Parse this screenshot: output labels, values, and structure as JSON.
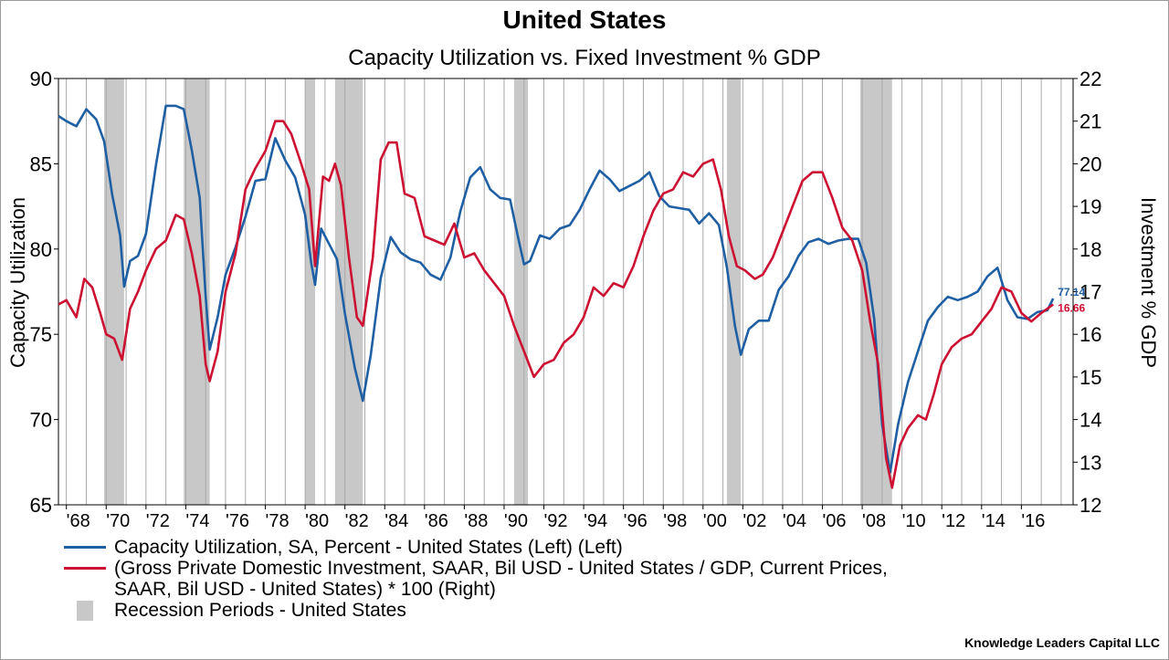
{
  "chart_data": {
    "type": "line",
    "title": "United States",
    "subtitle": "Capacity Utilization vs. Fixed Investment % GDP",
    "ylabel_left": "Capacity Utilization",
    "ylabel_right": "Investment % GDP",
    "ylim_left": [
      65,
      90
    ],
    "ylim_right": [
      12,
      22
    ],
    "yticks_left": [
      "65",
      "70",
      "75",
      "80",
      "85",
      "90"
    ],
    "yticks_right": [
      "12",
      "13",
      "14",
      "15",
      "16",
      "17",
      "18",
      "19",
      "20",
      "21",
      "22"
    ],
    "xlim": [
      1967.6,
      2018.6
    ],
    "xticks": [
      "'68",
      "'70",
      "'72",
      "'74",
      "'76",
      "'78",
      "'80",
      "'82",
      "'84",
      "'86",
      "'88",
      "'90",
      "'92",
      "'94",
      "'96",
      "'98",
      "'00",
      "'02",
      "'04",
      "'06",
      "'08",
      "'10",
      "'12",
      "'14",
      "'16"
    ],
    "grid": "vertical-yearly",
    "recessions": [
      [
        1969.9,
        1970.9
      ],
      [
        1973.9,
        1975.2
      ],
      [
        1980.0,
        1980.5
      ],
      [
        1981.5,
        1982.9
      ],
      [
        1990.5,
        1991.2
      ],
      [
        2001.2,
        2001.9
      ],
      [
        2007.9,
        2009.5
      ]
    ],
    "series": [
      {
        "name": "Capacity Utilization, SA, Percent - United States  (Left) (Left)",
        "axis": "left",
        "color": "#1f5fa3",
        "last_label": "77.14",
        "x": [
          1967.6,
          1968.0,
          1968.5,
          1969.0,
          1969.5,
          1969.9,
          1970.3,
          1970.7,
          1970.9,
          1971.2,
          1971.6,
          1972.0,
          1972.5,
          1973.0,
          1973.5,
          1973.9,
          1974.3,
          1974.7,
          1975.0,
          1975.2,
          1975.6,
          1976.0,
          1976.5,
          1977.0,
          1977.5,
          1978.0,
          1978.5,
          1979.0,
          1979.5,
          1980.0,
          1980.3,
          1980.5,
          1980.8,
          1981.2,
          1981.6,
          1982.0,
          1982.5,
          1982.9,
          1983.3,
          1983.8,
          1984.3,
          1984.8,
          1985.3,
          1985.8,
          1986.3,
          1986.8,
          1987.3,
          1987.8,
          1988.3,
          1988.8,
          1989.3,
          1989.8,
          1990.3,
          1990.7,
          1991.0,
          1991.3,
          1991.8,
          1992.3,
          1992.8,
          1993.3,
          1993.8,
          1994.3,
          1994.8,
          1995.3,
          1995.8,
          1996.3,
          1996.8,
          1997.3,
          1997.8,
          1998.3,
          1998.8,
          1999.3,
          1999.8,
          2000.3,
          2000.8,
          2001.2,
          2001.6,
          2001.9,
          2002.3,
          2002.8,
          2003.3,
          2003.8,
          2004.3,
          2004.8,
          2005.3,
          2005.8,
          2006.3,
          2006.8,
          2007.3,
          2007.8,
          2008.2,
          2008.6,
          2009.0,
          2009.4,
          2009.8,
          2010.3,
          2010.8,
          2011.3,
          2011.8,
          2012.3,
          2012.8,
          2013.3,
          2013.8,
          2014.3,
          2014.8,
          2015.3,
          2015.8,
          2016.3,
          2016.8,
          2017.3,
          2017.6
        ],
        "values": [
          87.8,
          87.5,
          87.2,
          88.2,
          87.6,
          86.3,
          83.2,
          80.8,
          77.8,
          79.3,
          79.6,
          80.9,
          84.9,
          88.4,
          88.4,
          88.2,
          85.8,
          83.0,
          77.2,
          74.1,
          76.0,
          78.5,
          80.1,
          81.9,
          84.0,
          84.1,
          86.5,
          85.2,
          84.2,
          82.0,
          79.2,
          77.9,
          81.2,
          80.3,
          79.4,
          76.2,
          73.0,
          71.1,
          73.8,
          78.3,
          80.7,
          79.8,
          79.4,
          79.2,
          78.5,
          78.2,
          79.5,
          82.2,
          84.2,
          84.8,
          83.5,
          83.0,
          82.9,
          80.7,
          79.1,
          79.3,
          80.8,
          80.6,
          81.2,
          81.4,
          82.3,
          83.5,
          84.6,
          84.1,
          83.4,
          83.7,
          84.0,
          84.5,
          83.1,
          82.5,
          82.4,
          82.3,
          81.5,
          82.1,
          81.4,
          78.9,
          75.5,
          73.8,
          75.3,
          75.8,
          75.8,
          77.6,
          78.4,
          79.6,
          80.4,
          80.6,
          80.3,
          80.5,
          80.6,
          80.6,
          79.2,
          75.9,
          69.7,
          66.9,
          69.7,
          72.2,
          74.0,
          75.8,
          76.6,
          77.2,
          77.0,
          77.2,
          77.5,
          78.4,
          78.9,
          77.0,
          76.0,
          75.9,
          76.3,
          76.4,
          77.1
        ]
      },
      {
        "name": "(Gross Private Domestic Investment, SAAR, Bil USD - United States / GDP, Current Prices, SAAR, Bil USD - United States) * 100  (Right)",
        "axis": "right",
        "color": "#cc1133",
        "last_label": "16.66",
        "x": [
          1967.6,
          1968.0,
          1968.5,
          1968.9,
          1969.3,
          1969.7,
          1970.0,
          1970.4,
          1970.8,
          1971.2,
          1971.6,
          1972.0,
          1972.5,
          1973.0,
          1973.5,
          1973.9,
          1974.3,
          1974.7,
          1975.0,
          1975.2,
          1975.6,
          1976.0,
          1976.5,
          1977.0,
          1977.5,
          1978.0,
          1978.5,
          1978.9,
          1979.3,
          1979.8,
          1980.2,
          1980.5,
          1980.9,
          1981.2,
          1981.5,
          1981.8,
          1982.2,
          1982.6,
          1982.9,
          1983.4,
          1983.8,
          1984.2,
          1984.6,
          1985.0,
          1985.5,
          1986.0,
          1986.5,
          1987.0,
          1987.5,
          1988.0,
          1988.5,
          1989.0,
          1989.5,
          1990.0,
          1990.5,
          1991.0,
          1991.5,
          1992.0,
          1992.5,
          1993.0,
          1993.5,
          1994.0,
          1994.5,
          1995.0,
          1995.5,
          1996.0,
          1996.5,
          1997.0,
          1997.5,
          1998.0,
          1998.5,
          1999.0,
          1999.5,
          2000.0,
          2000.5,
          2000.9,
          2001.3,
          2001.7,
          2002.1,
          2002.6,
          2003.0,
          2003.5,
          2004.0,
          2004.5,
          2005.0,
          2005.5,
          2006.0,
          2006.5,
          2007.0,
          2007.5,
          2008.0,
          2008.4,
          2008.8,
          2009.2,
          2009.5,
          2009.9,
          2010.3,
          2010.8,
          2011.2,
          2011.6,
          2012.0,
          2012.5,
          2013.0,
          2013.5,
          2014.0,
          2014.5,
          2015.0,
          2015.5,
          2016.0,
          2016.5,
          2017.0,
          2017.3,
          2017.6
        ],
        "values": [
          16.7,
          16.8,
          16.4,
          17.3,
          17.1,
          16.5,
          16.0,
          15.9,
          15.4,
          16.6,
          17.0,
          17.5,
          18.0,
          18.2,
          18.8,
          18.7,
          17.9,
          16.9,
          15.3,
          14.9,
          15.6,
          17.0,
          17.9,
          19.4,
          19.9,
          20.3,
          21.0,
          21.0,
          20.7,
          20.0,
          19.4,
          17.6,
          19.7,
          19.6,
          20.0,
          19.5,
          17.8,
          16.4,
          16.2,
          17.8,
          20.1,
          20.5,
          20.5,
          19.3,
          19.2,
          18.3,
          18.2,
          18.1,
          18.6,
          17.8,
          17.9,
          17.5,
          17.2,
          16.9,
          16.2,
          15.6,
          15.0,
          15.3,
          15.4,
          15.8,
          16.0,
          16.4,
          17.1,
          16.9,
          17.2,
          17.1,
          17.6,
          18.3,
          18.9,
          19.3,
          19.4,
          19.8,
          19.7,
          20.0,
          20.1,
          19.4,
          18.3,
          17.6,
          17.5,
          17.3,
          17.4,
          17.8,
          18.4,
          19.0,
          19.6,
          19.8,
          19.8,
          19.2,
          18.5,
          18.2,
          17.5,
          16.3,
          15.3,
          13.1,
          12.4,
          13.4,
          13.8,
          14.1,
          14.0,
          14.6,
          15.3,
          15.7,
          15.9,
          16.0,
          16.3,
          16.6,
          17.1,
          17.0,
          16.5,
          16.3,
          16.5,
          16.6,
          16.7
        ]
      }
    ],
    "legend": [
      {
        "label": "Capacity Utilization, SA, Percent - United States  (Left) (Left)",
        "color": "#1f5fa3",
        "kind": "line"
      },
      {
        "label": "(Gross Private Domestic Investment, SAAR, Bil USD - United States / GDP, Current Prices,",
        "label2": "SAAR, Bil USD - United States) * 100  (Right)",
        "color": "#cc1133",
        "kind": "line"
      },
      {
        "label": "Recession Periods - United States",
        "color": "#c8c8c8",
        "kind": "box"
      }
    ],
    "source": "Knowledge Leaders Capital LLC"
  }
}
